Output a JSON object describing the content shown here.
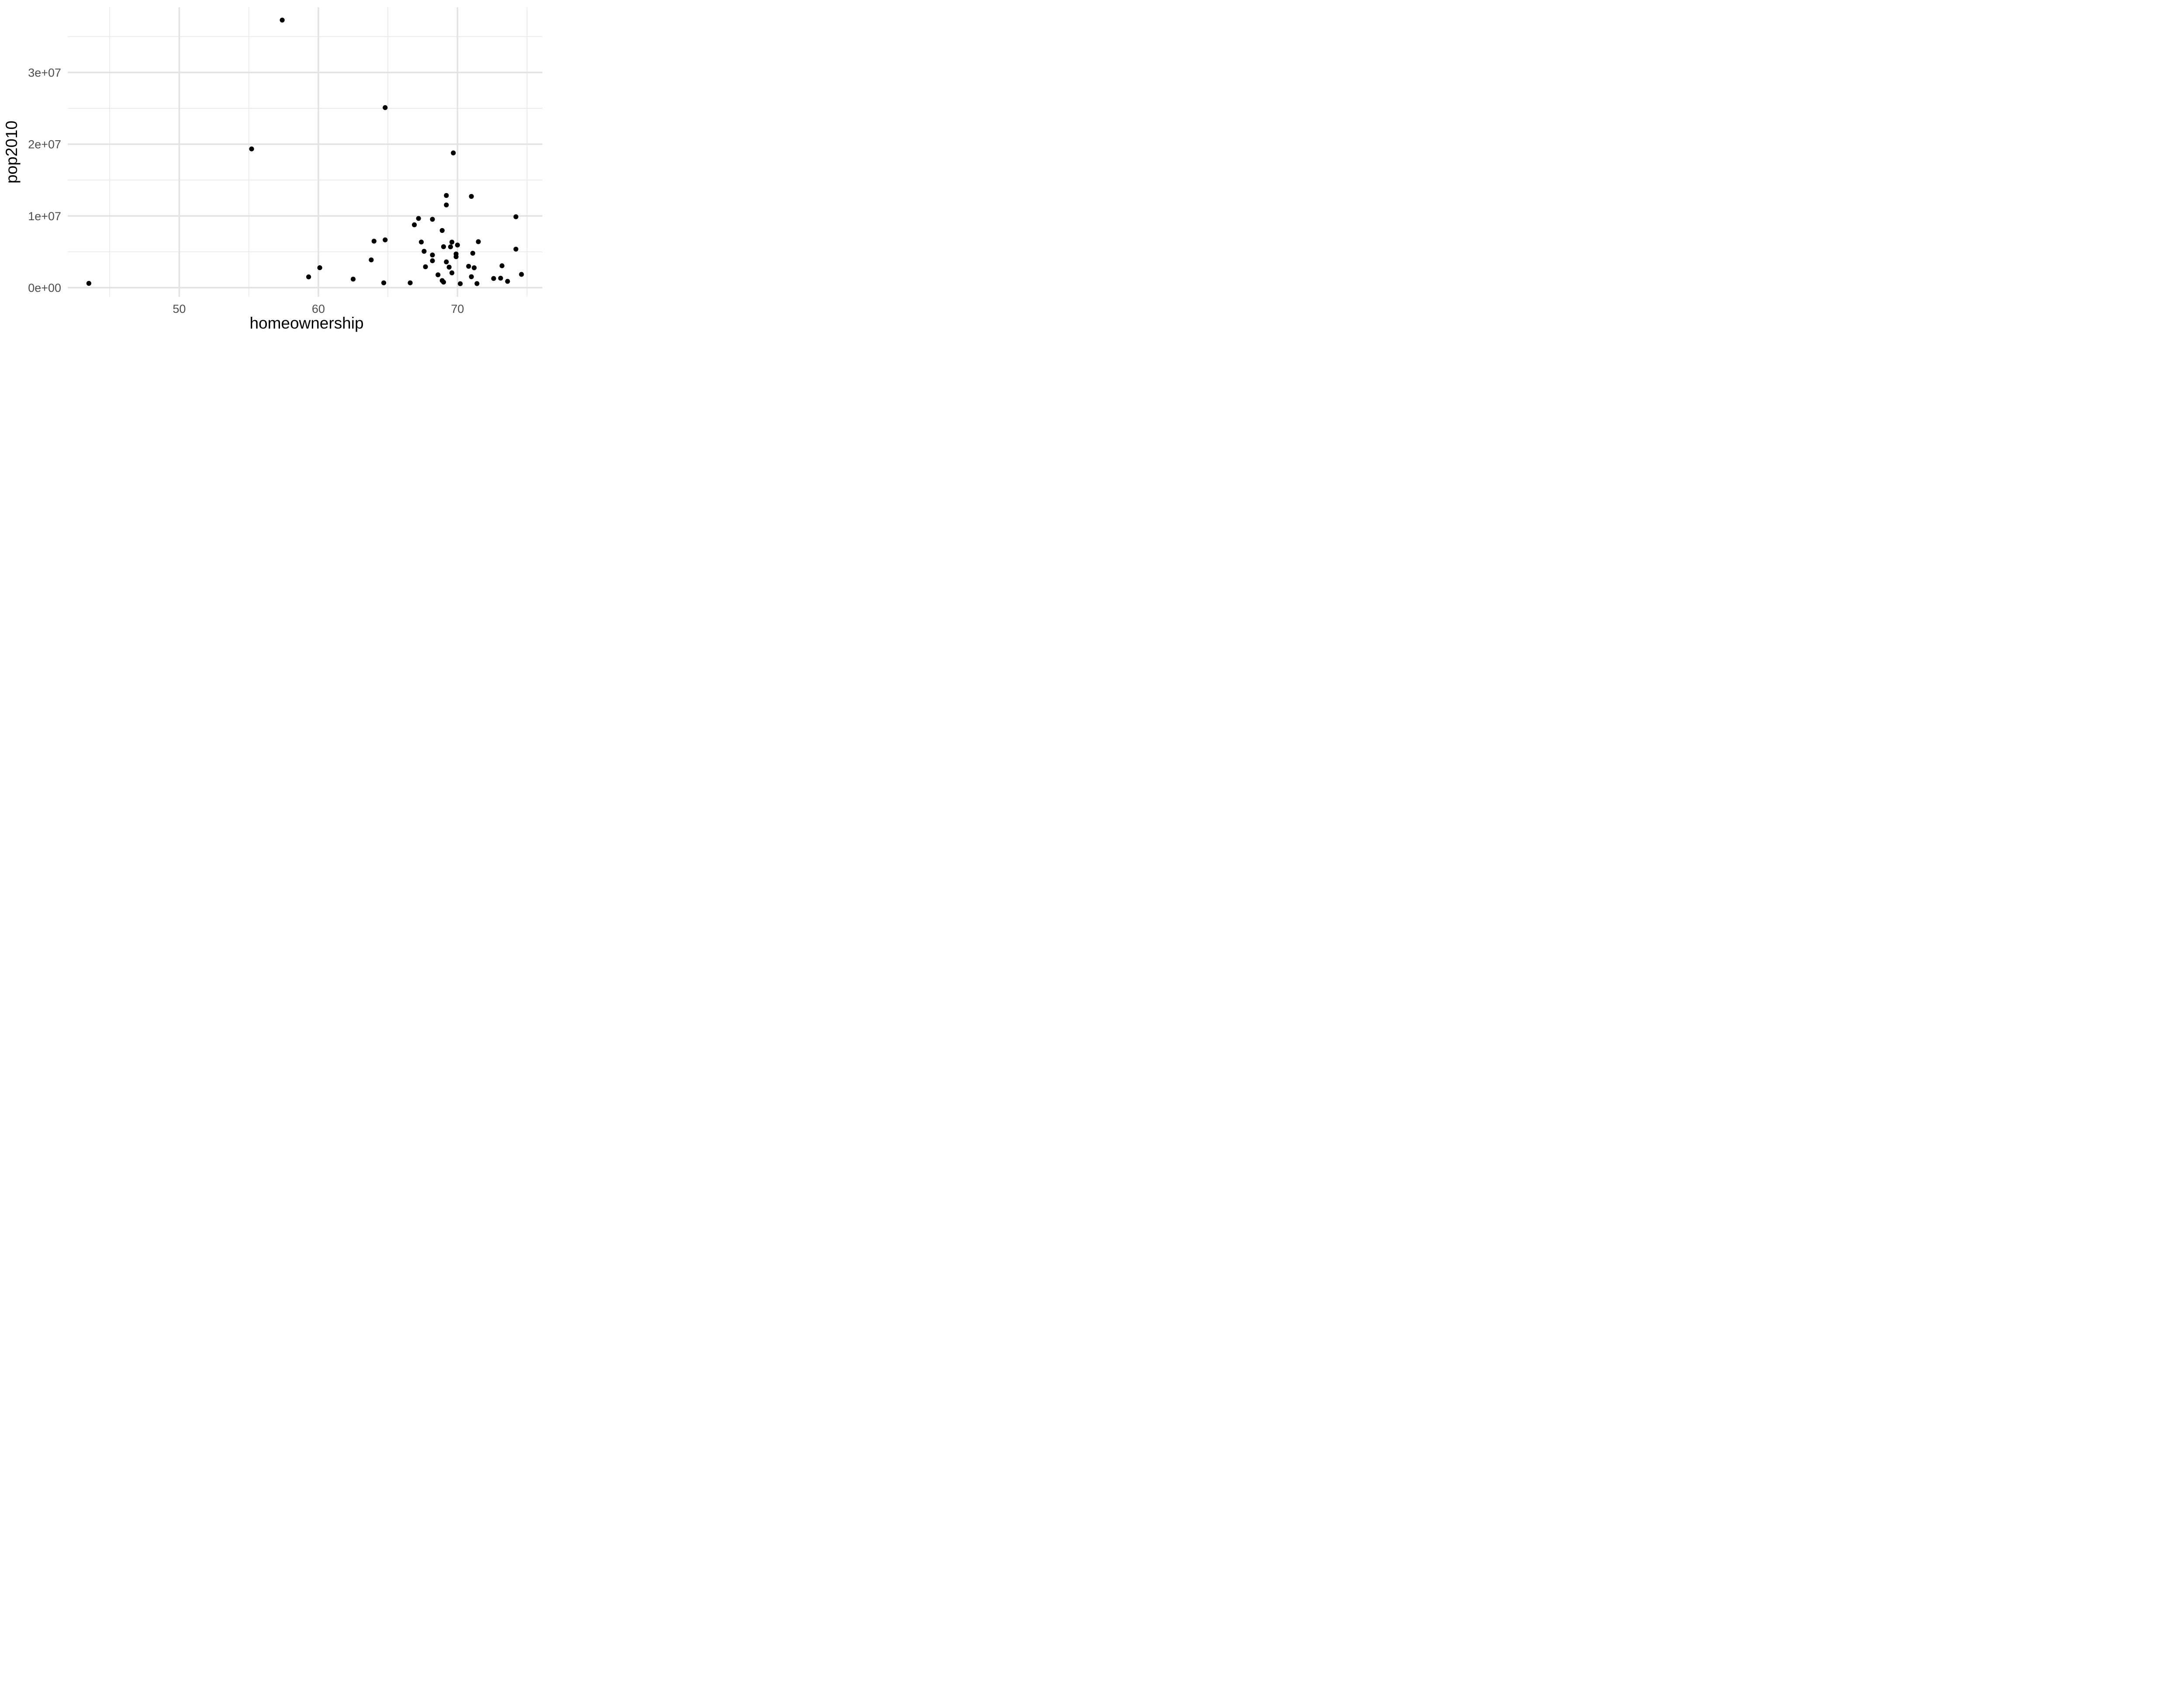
{
  "figure": {
    "background_color": "#ffffff",
    "kind": "ggplot-style scatter plot"
  },
  "chart_data": {
    "type": "scatter",
    "title": "",
    "xlabel": "homeownership",
    "ylabel": "pop2010",
    "legend": "none",
    "grid": "on",
    "xlim": [
      41.98,
      76.1
    ],
    "ylim": [
      -1270000,
      39090000
    ],
    "x_ticks": {
      "values": [
        50,
        60,
        70
      ],
      "labels": [
        "50",
        "60",
        "70"
      ]
    },
    "y_ticks": {
      "values": [
        0,
        10000000,
        20000000,
        30000000
      ],
      "labels": [
        "0e+00",
        "1e+07",
        "2e+07",
        "3e+07"
      ]
    },
    "x_minor_gridlines": [
      45,
      55,
      65,
      75
    ],
    "y_minor_gridlines": [
      5000000,
      15000000,
      25000000,
      35000000
    ],
    "styles": {
      "point_color": "#000000",
      "major_grid_color": "#e3e3e3",
      "minor_grid_color": "#eaeaea",
      "tick_label_color": "#4d4d4d",
      "axis_title_color": "#000000"
    },
    "points": [
      [
        43.5,
        600000
      ],
      [
        57.4,
        37300000
      ],
      [
        55.2,
        19340000
      ],
      [
        64.8,
        25100000
      ],
      [
        69.7,
        18780000
      ],
      [
        67.2,
        9650000
      ],
      [
        66.9,
        8760000
      ],
      [
        68.2,
        9530000
      ],
      [
        64.0,
        6480000
      ],
      [
        64.8,
        6660000
      ],
      [
        67.4,
        6360000
      ],
      [
        69.2,
        12850000
      ],
      [
        69.2,
        11530000
      ],
      [
        71.0,
        12720000
      ],
      [
        68.9,
        7970000
      ],
      [
        69.6,
        6350000
      ],
      [
        69.5,
        5690000
      ],
      [
        69.0,
        5710000
      ],
      [
        70.0,
        5940000
      ],
      [
        71.5,
        6410000
      ],
      [
        74.2,
        9880000
      ],
      [
        63.8,
        3870000
      ],
      [
        64.7,
        670000
      ],
      [
        66.6,
        670000
      ],
      [
        67.6,
        5070000
      ],
      [
        68.2,
        4550000
      ],
      [
        68.2,
        3750000
      ],
      [
        67.7,
        2910000
      ],
      [
        69.9,
        4700000
      ],
      [
        69.9,
        4310000
      ],
      [
        71.1,
        4800000
      ],
      [
        69.2,
        3590000
      ],
      [
        69.4,
        2860000
      ],
      [
        69.6,
        2060000
      ],
      [
        70.8,
        2980000
      ],
      [
        71.2,
        2770000
      ],
      [
        68.6,
        1790000
      ],
      [
        68.9,
        990000
      ],
      [
        69.0,
        770000
      ],
      [
        71.0,
        1520000
      ],
      [
        70.2,
        550000
      ],
      [
        71.4,
        570000
      ],
      [
        74.2,
        5370000
      ],
      [
        73.2,
        3050000
      ],
      [
        72.6,
        1280000
      ],
      [
        73.1,
        1320000
      ],
      [
        73.6,
        880000
      ],
      [
        74.6,
        1850000
      ],
      [
        60.1,
        2780000
      ],
      [
        59.3,
        1500000
      ],
      [
        62.5,
        1190000
      ]
    ]
  }
}
